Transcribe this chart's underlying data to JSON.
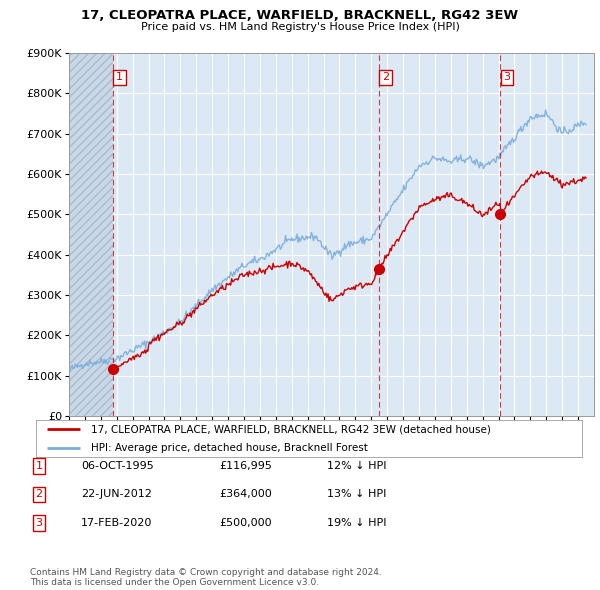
{
  "title": "17, CLEOPATRA PLACE, WARFIELD, BRACKNELL, RG42 3EW",
  "subtitle": "Price paid vs. HM Land Registry's House Price Index (HPI)",
  "ylim": [
    0,
    900000
  ],
  "yticks": [
    0,
    100000,
    200000,
    300000,
    400000,
    500000,
    600000,
    700000,
    800000,
    900000
  ],
  "ytick_labels": [
    "£0",
    "£100K",
    "£200K",
    "£300K",
    "£400K",
    "£500K",
    "£600K",
    "£700K",
    "£800K",
    "£900K"
  ],
  "xlim_start": 1993,
  "xlim_end": 2026,
  "sale_dates": [
    1995.76,
    2012.47,
    2020.12
  ],
  "sale_prices": [
    116995,
    364000,
    500000
  ],
  "sale_labels": [
    "1",
    "2",
    "3"
  ],
  "property_color": "#cc0000",
  "hpi_color": "#7aadda",
  "bg_color": "#dce9f5",
  "hatch_color": "#c8d8e8",
  "legend_property": "17, CLEOPATRA PLACE, WARFIELD, BRACKNELL, RG42 3EW (detached house)",
  "legend_hpi": "HPI: Average price, detached house, Bracknell Forest",
  "table_data": [
    [
      "1",
      "06-OCT-1995",
      "£116,995",
      "12% ↓ HPI"
    ],
    [
      "2",
      "22-JUN-2012",
      "£364,000",
      "13% ↓ HPI"
    ],
    [
      "3",
      "17-FEB-2020",
      "£500,000",
      "19% ↓ HPI"
    ]
  ],
  "footer": "Contains HM Land Registry data © Crown copyright and database right 2024.\nThis data is licensed under the Open Government Licence v3.0."
}
